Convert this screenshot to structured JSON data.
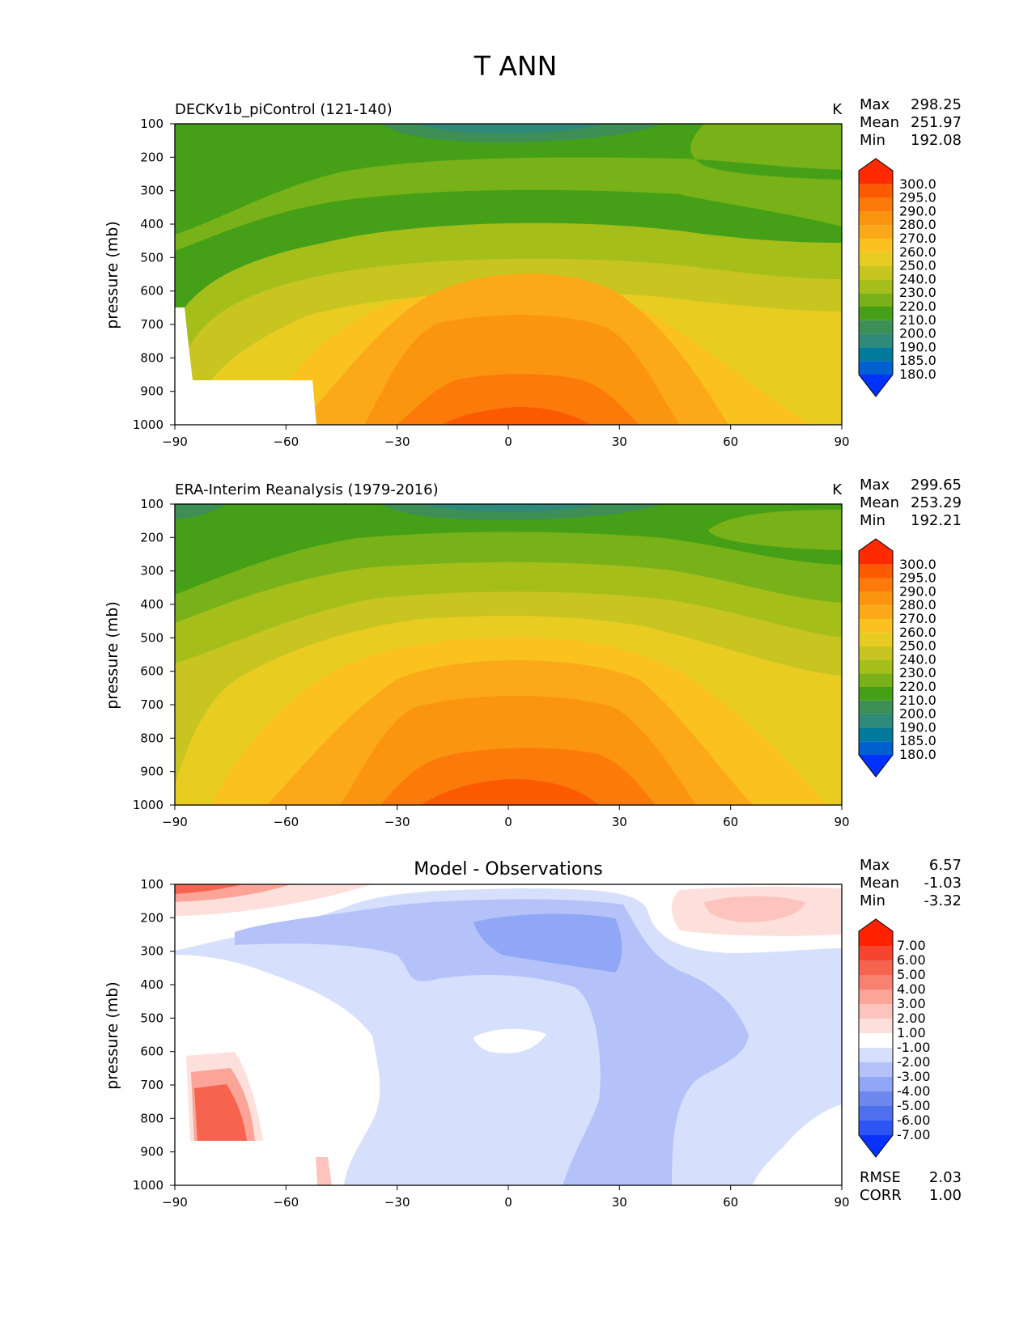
{
  "figure_title": "T ANN",
  "chart_data": [
    {
      "type": "heatmap",
      "title": "DECKv1b_piControl (121-140)",
      "units": "K",
      "xlabel": "",
      "ylabel": "pressure (mb)",
      "xlim": [
        -90,
        90
      ],
      "ylim": [
        1000,
        100
      ],
      "xticks": [
        -90,
        -60,
        -30,
        0,
        30,
        60,
        90
      ],
      "xtick_labels": [
        "−90",
        "−60",
        "−30",
        "0",
        "30",
        "60",
        "90"
      ],
      "yticks": [
        100,
        200,
        300,
        400,
        500,
        600,
        700,
        800,
        900,
        1000
      ],
      "stats": [
        {
          "label": "Max",
          "value": "298.25"
        },
        {
          "label": "Mean",
          "value": "251.97"
        },
        {
          "label": "Min",
          "value": "192.08"
        }
      ],
      "colorbar": {
        "levels": [
          180,
          185,
          190,
          200,
          210,
          220,
          230,
          240,
          250,
          260,
          270,
          280,
          290,
          295,
          300
        ],
        "labels": [
          "180.0",
          "185.0",
          "190.0",
          "200.0",
          "210.0",
          "220.0",
          "230.0",
          "240.0",
          "250.0",
          "260.0",
          "270.0",
          "280.0",
          "290.0",
          "295.0",
          "300.0"
        ],
        "colors": [
          "#0032ff",
          "#0060d0",
          "#007a9a",
          "#2f8a7a",
          "#3d8f55",
          "#45a018",
          "#79b218",
          "#a5be1a",
          "#c8c420",
          "#e8cc22",
          "#fbc21f",
          "#fba918",
          "#fb9510",
          "#fb7a09",
          "#fb5a00",
          "#ff2a00"
        ]
      }
    },
    {
      "type": "heatmap",
      "title": "ERA-Interim Reanalysis (1979-2016)",
      "units": "K",
      "xlabel": "",
      "ylabel": "pressure (mb)",
      "xlim": [
        -90,
        90
      ],
      "ylim": [
        1000,
        100
      ],
      "xticks": [
        -90,
        -60,
        -30,
        0,
        30,
        60,
        90
      ],
      "xtick_labels": [
        "−90",
        "−60",
        "−30",
        "0",
        "30",
        "60",
        "90"
      ],
      "yticks": [
        100,
        200,
        300,
        400,
        500,
        600,
        700,
        800,
        900,
        1000
      ],
      "stats": [
        {
          "label": "Max",
          "value": "299.65"
        },
        {
          "label": "Mean",
          "value": "253.29"
        },
        {
          "label": "Min",
          "value": "192.21"
        }
      ],
      "colorbar": {
        "levels": [
          180,
          185,
          190,
          200,
          210,
          220,
          230,
          240,
          250,
          260,
          270,
          280,
          290,
          295,
          300
        ],
        "labels": [
          "180.0",
          "185.0",
          "190.0",
          "200.0",
          "210.0",
          "220.0",
          "230.0",
          "240.0",
          "250.0",
          "260.0",
          "270.0",
          "280.0",
          "290.0",
          "295.0",
          "300.0"
        ],
        "colors": [
          "#0032ff",
          "#0060d0",
          "#007a9a",
          "#2f8a7a",
          "#3d8f55",
          "#45a018",
          "#79b218",
          "#a5be1a",
          "#c8c420",
          "#e8cc22",
          "#fbc21f",
          "#fba918",
          "#fb9510",
          "#fb7a09",
          "#fb5a00",
          "#ff2a00"
        ]
      }
    },
    {
      "type": "heatmap",
      "title": "Model - Observations",
      "units": "",
      "xlabel": "",
      "ylabel": "pressure (mb)",
      "xlim": [
        -90,
        90
      ],
      "ylim": [
        1000,
        100
      ],
      "xticks": [
        -90,
        -60,
        -30,
        0,
        30,
        60,
        90
      ],
      "xtick_labels": [
        "−90",
        "−60",
        "−30",
        "0",
        "30",
        "60",
        "90"
      ],
      "yticks": [
        100,
        200,
        300,
        400,
        500,
        600,
        700,
        800,
        900,
        1000
      ],
      "stats": [
        {
          "label": "Max",
          "value": "6.57"
        },
        {
          "label": "Mean",
          "value": "-1.03"
        },
        {
          "label": "Min",
          "value": "-3.32"
        }
      ],
      "metrics": [
        {
          "label": "RMSE",
          "value": "2.03"
        },
        {
          "label": "CORR",
          "value": "1.00"
        }
      ],
      "colorbar": {
        "levels": [
          -7,
          -6,
          -5,
          -4,
          -3,
          -2,
          -1,
          1,
          2,
          3,
          4,
          5,
          6,
          7
        ],
        "labels": [
          "-7.00",
          "-6.00",
          "-5.00",
          "-4.00",
          "-3.00",
          "-2.00",
          "-1.00",
          "1.00",
          "2.00",
          "3.00",
          "4.00",
          "5.00",
          "6.00",
          "7.00"
        ],
        "colors": [
          "#0a32ff",
          "#2d55f5",
          "#4f70ee",
          "#6f88ee",
          "#90a6f6",
          "#b4c2f9",
          "#d6dffc",
          "#ffffff",
          "#fde0dc",
          "#fcc4bc",
          "#fca497",
          "#f88270",
          "#f66450",
          "#f54530",
          "#ff2200"
        ]
      }
    }
  ]
}
